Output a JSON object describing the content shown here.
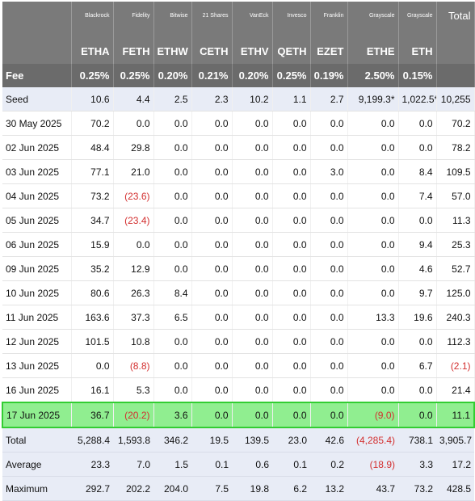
{
  "header": {
    "issuers": [
      "Blackrock",
      "Fidelity",
      "Bitwise",
      "21 Shares",
      "VanEck",
      "Invesco",
      "Franklin",
      "Grayscale",
      "Grayscale"
    ],
    "total_label": "Total",
    "tickers": [
      "ETHA",
      "FETH",
      "ETHW",
      "CETH",
      "ETHV",
      "QETH",
      "EZET",
      "ETHE",
      "ETH"
    ],
    "fee_label": "Fee",
    "fees": [
      "0.25%",
      "0.25%",
      "0.20%",
      "0.21%",
      "0.20%",
      "0.25%",
      "0.19%",
      "2.50%",
      "0.15%"
    ]
  },
  "rows": [
    {
      "label": "Seed",
      "cells": [
        "10.6",
        "4.4",
        "2.5",
        "2.3",
        "10.2",
        "1.1",
        "2.7",
        "9,199.3*",
        "1,022.5*",
        "10,255"
      ]
    },
    {
      "label": "30 May 2025",
      "cells": [
        "70.2",
        "0.0",
        "0.0",
        "0.0",
        "0.0",
        "0.0",
        "0.0",
        "0.0",
        "0.0",
        "70.2"
      ]
    },
    {
      "label": "02 Jun 2025",
      "cells": [
        "48.4",
        "29.8",
        "0.0",
        "0.0",
        "0.0",
        "0.0",
        "0.0",
        "0.0",
        "0.0",
        "78.2"
      ]
    },
    {
      "label": "03 Jun 2025",
      "cells": [
        "77.1",
        "21.0",
        "0.0",
        "0.0",
        "0.0",
        "0.0",
        "3.0",
        "0.0",
        "8.4",
        "109.5"
      ]
    },
    {
      "label": "04 Jun 2025",
      "cells": [
        "73.2",
        "(23.6)",
        "0.0",
        "0.0",
        "0.0",
        "0.0",
        "0.0",
        "0.0",
        "7.4",
        "57.0"
      ]
    },
    {
      "label": "05 Jun 2025",
      "cells": [
        "34.7",
        "(23.4)",
        "0.0",
        "0.0",
        "0.0",
        "0.0",
        "0.0",
        "0.0",
        "0.0",
        "11.3"
      ]
    },
    {
      "label": "06 Jun 2025",
      "cells": [
        "15.9",
        "0.0",
        "0.0",
        "0.0",
        "0.0",
        "0.0",
        "0.0",
        "0.0",
        "9.4",
        "25.3"
      ]
    },
    {
      "label": "09 Jun 2025",
      "cells": [
        "35.2",
        "12.9",
        "0.0",
        "0.0",
        "0.0",
        "0.0",
        "0.0",
        "0.0",
        "4.6",
        "52.7"
      ]
    },
    {
      "label": "10 Jun 2025",
      "cells": [
        "80.6",
        "26.3",
        "8.4",
        "0.0",
        "0.0",
        "0.0",
        "0.0",
        "0.0",
        "9.7",
        "125.0"
      ]
    },
    {
      "label": "11 Jun 2025",
      "cells": [
        "163.6",
        "37.3",
        "6.5",
        "0.0",
        "0.0",
        "0.0",
        "0.0",
        "13.3",
        "19.6",
        "240.3"
      ]
    },
    {
      "label": "12 Jun 2025",
      "cells": [
        "101.5",
        "10.8",
        "0.0",
        "0.0",
        "0.0",
        "0.0",
        "0.0",
        "0.0",
        "0.0",
        "112.3"
      ]
    },
    {
      "label": "13 Jun 2025",
      "cells": [
        "0.0",
        "(8.8)",
        "0.0",
        "0.0",
        "0.0",
        "0.0",
        "0.0",
        "0.0",
        "6.7",
        "(2.1)"
      ]
    },
    {
      "label": "16 Jun 2025",
      "cells": [
        "16.1",
        "5.3",
        "0.0",
        "0.0",
        "0.0",
        "0.0",
        "0.0",
        "0.0",
        "0.0",
        "21.4"
      ]
    },
    {
      "label": "17 Jun 2025",
      "cells": [
        "36.7",
        "(20.2)",
        "3.6",
        "0.0",
        "0.0",
        "0.0",
        "0.0",
        "(9.0)",
        "0.0",
        "11.1"
      ]
    }
  ],
  "summary": [
    {
      "label": "Total",
      "cells": [
        "5,288.4",
        "1,593.8",
        "346.2",
        "19.5",
        "139.5",
        "23.0",
        "42.6",
        "(4,285.4)",
        "738.1",
        "3,905.7"
      ]
    },
    {
      "label": "Average",
      "cells": [
        "23.3",
        "7.0",
        "1.5",
        "0.1",
        "0.6",
        "0.1",
        "0.2",
        "(18.9)",
        "3.3",
        "17.2"
      ]
    },
    {
      "label": "Maximum",
      "cells": [
        "292.7",
        "202.2",
        "204.0",
        "7.5",
        "19.8",
        "6.2",
        "13.2",
        "43.7",
        "73.2",
        "428.5"
      ]
    }
  ],
  "colors": {
    "header_bg": "#7a7a7a",
    "fee_bg": "#6b6b6b",
    "row_shade": "#e8ecf6",
    "highlight_bg": "#90ee90",
    "highlight_border": "#32cd32",
    "negative": "#d32f2f"
  }
}
